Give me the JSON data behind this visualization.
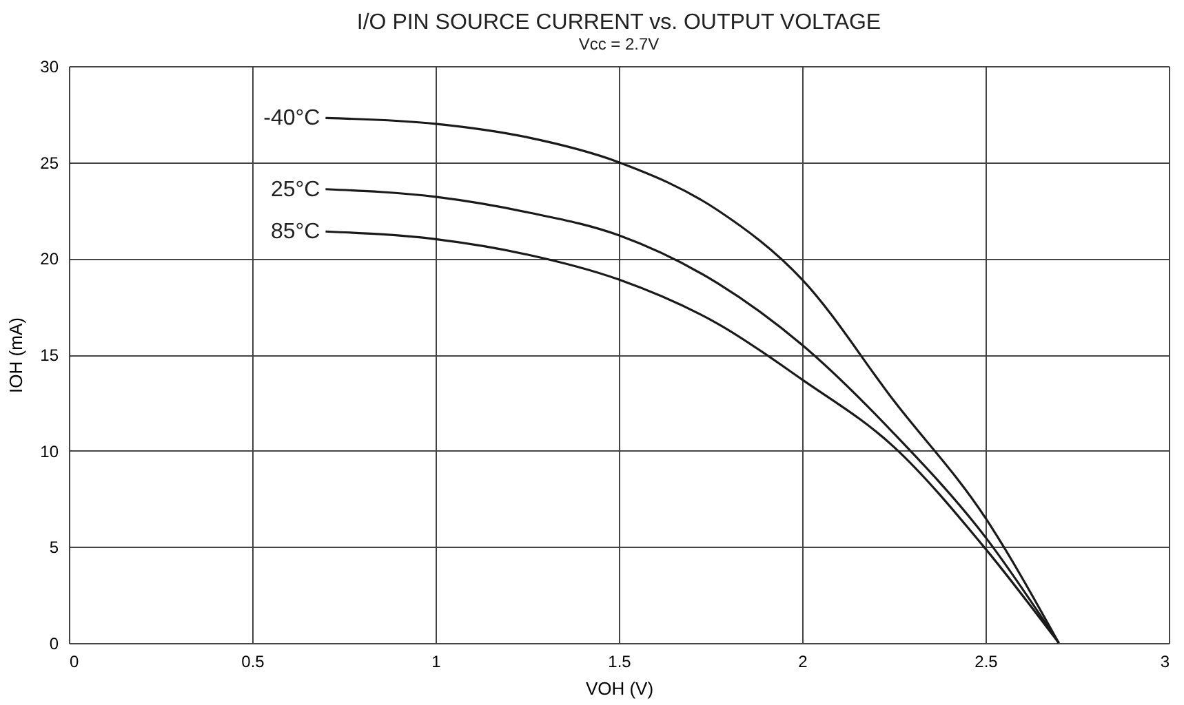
{
  "chart_data": {
    "type": "line",
    "title": "I/O PIN SOURCE CURRENT vs. OUTPUT VOLTAGE",
    "subtitle": "Vcc = 2.7V",
    "xlabel": "VOH (V)",
    "ylabel": "IOH (mA)",
    "xlim": [
      0,
      3
    ],
    "ylim": [
      0,
      30
    ],
    "xticks": [
      0,
      0.5,
      1,
      1.5,
      2,
      2.5,
      3
    ],
    "yticks": [
      0,
      5,
      10,
      15,
      20,
      25,
      30
    ],
    "grid": true,
    "marker": "none",
    "line_style": "solid",
    "series": [
      {
        "name": "-40°C",
        "color": "#1a1a1a",
        "x": [
          0.7,
          1.0,
          1.25,
          1.5,
          1.77,
          2.0,
          2.25,
          2.5,
          2.7
        ],
        "values": [
          27.3,
          27.0,
          26.3,
          25.0,
          22.5,
          18.9,
          12.6,
          6.5,
          0
        ]
      },
      {
        "name": "25°C",
        "color": "#1a1a1a",
        "x": [
          0.7,
          1.0,
          1.25,
          1.5,
          1.77,
          2.0,
          2.25,
          2.5,
          2.7
        ],
        "values": [
          23.6,
          23.2,
          22.4,
          21.2,
          18.7,
          15.5,
          10.9,
          5.5,
          0
        ]
      },
      {
        "name": "85°C",
        "color": "#1a1a1a",
        "x": [
          0.7,
          1.0,
          1.25,
          1.5,
          1.77,
          2.0,
          2.25,
          2.5,
          2.7
        ],
        "values": [
          21.4,
          21.0,
          20.2,
          18.9,
          16.6,
          13.7,
          10.2,
          4.9,
          0
        ]
      }
    ]
  }
}
